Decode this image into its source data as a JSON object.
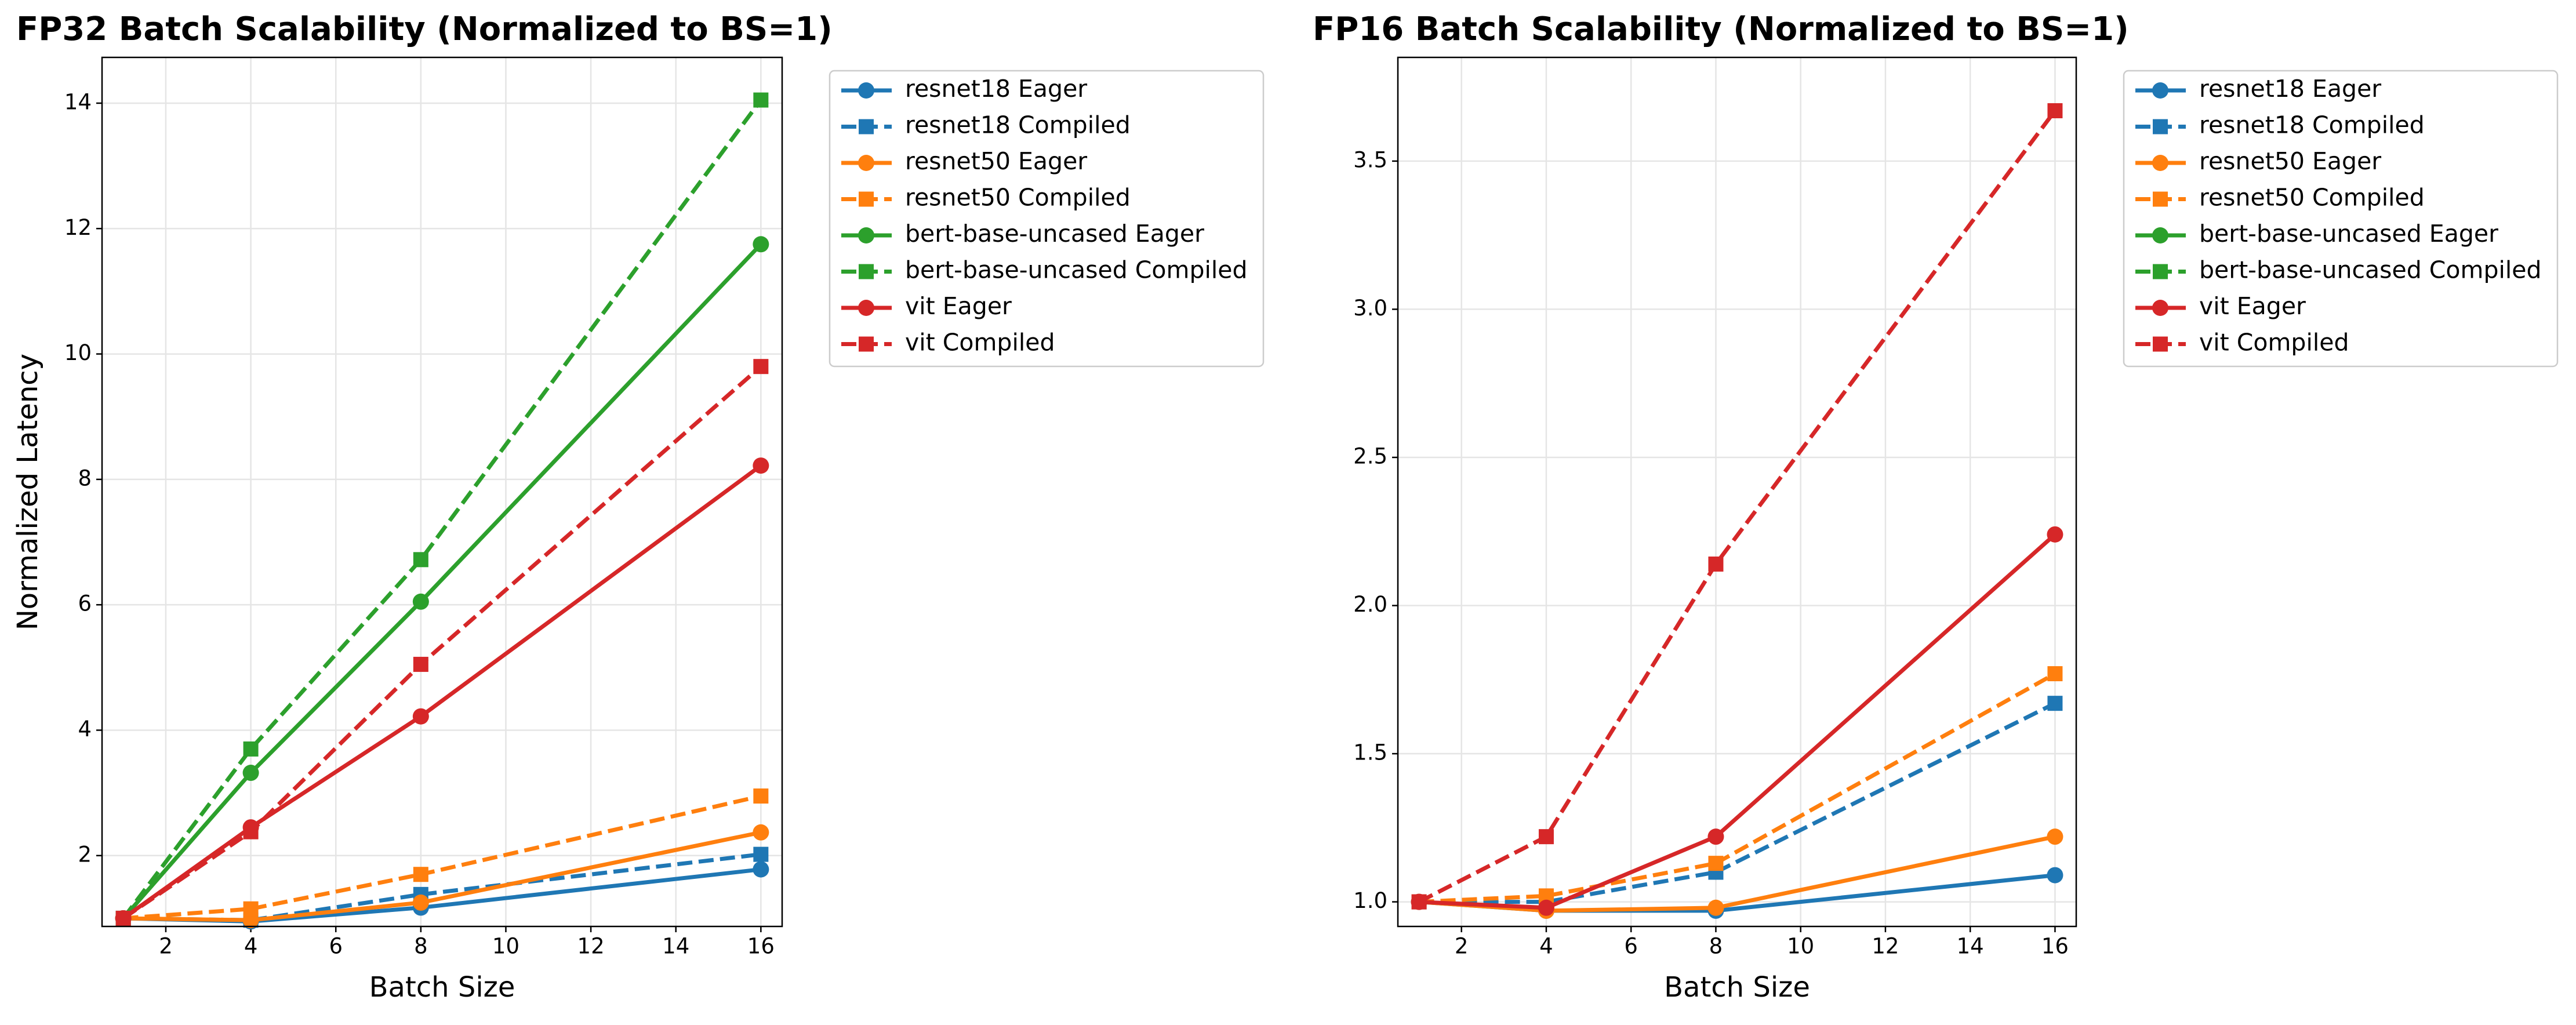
{
  "chart_data": [
    {
      "type": "line",
      "title": "FP32 Batch Scalability (Normalized to BS=1)",
      "xlabel": "Batch Size",
      "ylabel": "Normalized Latency",
      "x": [
        1,
        4,
        8,
        16
      ],
      "xlim": [
        0.5,
        16.5
      ],
      "xticks": [
        2,
        4,
        6,
        8,
        10,
        12,
        14,
        16
      ],
      "ylim": [
        0.87,
        14.73
      ],
      "yticks": [
        2,
        4,
        6,
        8,
        10,
        12,
        14
      ],
      "grid": true,
      "legend": "outside upper right",
      "series": [
        {
          "name": "resnet18 Eager",
          "color": "#1f77b4",
          "linestyle": "solid",
          "marker": "circle",
          "values": [
            1,
            0.95,
            1.17,
            1.78
          ]
        },
        {
          "name": "resnet18 Compiled",
          "color": "#1f77b4",
          "linestyle": "dashed",
          "marker": "square",
          "values": [
            1,
            0.97,
            1.38,
            2.02
          ]
        },
        {
          "name": "resnet50 Eager",
          "color": "#ff7f0e",
          "linestyle": "solid",
          "marker": "circle",
          "values": [
            1,
            0.97,
            1.25,
            2.37
          ]
        },
        {
          "name": "resnet50 Compiled",
          "color": "#ff7f0e",
          "linestyle": "dashed",
          "marker": "square",
          "values": [
            1,
            1.15,
            1.7,
            2.95
          ]
        },
        {
          "name": "bert-base-uncased Eager",
          "color": "#2ca02c",
          "linestyle": "solid",
          "marker": "circle",
          "values": [
            1,
            3.32,
            6.05,
            11.75
          ]
        },
        {
          "name": "bert-base-uncased Compiled",
          "color": "#2ca02c",
          "linestyle": "dashed",
          "marker": "square",
          "values": [
            1,
            3.7,
            6.72,
            14.05
          ]
        },
        {
          "name": "vit Eager",
          "color": "#d62728",
          "linestyle": "solid",
          "marker": "circle",
          "values": [
            1,
            2.45,
            4.22,
            8.22
          ]
        },
        {
          "name": "vit Compiled",
          "color": "#d62728",
          "linestyle": "dashed",
          "marker": "square",
          "values": [
            1,
            2.38,
            5.05,
            9.8
          ]
        }
      ]
    },
    {
      "type": "line",
      "title": "FP16 Batch Scalability (Normalized to BS=1)",
      "xlabel": "Batch Size",
      "ylabel": "Normalized Latency",
      "x": [
        1,
        4,
        8,
        16
      ],
      "xlim": [
        0.5,
        16.5
      ],
      "xticks": [
        2,
        4,
        6,
        8,
        10,
        12,
        14,
        16
      ],
      "ylim": [
        0.917,
        3.85
      ],
      "yticks": [
        {
          "value": 1,
          "label": "1.0"
        },
        1.5,
        {
          "value": 2,
          "label": "2.0"
        },
        2.5,
        {
          "value": 3,
          "label": "3.0"
        },
        3.5
      ],
      "grid": true,
      "legend": "outside upper right",
      "series": [
        {
          "name": "resnet18 Eager",
          "color": "#1f77b4",
          "linestyle": "solid",
          "marker": "circle",
          "values": [
            1,
            0.97,
            0.97,
            1.09
          ]
        },
        {
          "name": "resnet18 Compiled",
          "color": "#1f77b4",
          "linestyle": "dashed",
          "marker": "square",
          "values": [
            1,
            1.0,
            1.1,
            1.67
          ]
        },
        {
          "name": "resnet50 Eager",
          "color": "#ff7f0e",
          "linestyle": "solid",
          "marker": "circle",
          "values": [
            1,
            0.97,
            0.98,
            1.22
          ]
        },
        {
          "name": "resnet50 Compiled",
          "color": "#ff7f0e",
          "linestyle": "dashed",
          "marker": "square",
          "values": [
            1,
            1.02,
            1.13,
            1.77
          ]
        },
        {
          "name": "bert-base-uncased Eager",
          "color": "#2ca02c",
          "linestyle": "solid",
          "marker": "circle",
          "values": [
            null,
            null,
            null,
            null
          ]
        },
        {
          "name": "bert-base-uncased Compiled",
          "color": "#2ca02c",
          "linestyle": "dashed",
          "marker": "square",
          "values": [
            null,
            null,
            null,
            null
          ]
        },
        {
          "name": "vit Eager",
          "color": "#d62728",
          "linestyle": "solid",
          "marker": "circle",
          "values": [
            1,
            0.98,
            1.22,
            2.24
          ]
        },
        {
          "name": "vit Compiled",
          "color": "#d62728",
          "linestyle": "dashed",
          "marker": "square",
          "values": [
            1,
            1.22,
            2.14,
            3.67
          ]
        }
      ]
    }
  ]
}
